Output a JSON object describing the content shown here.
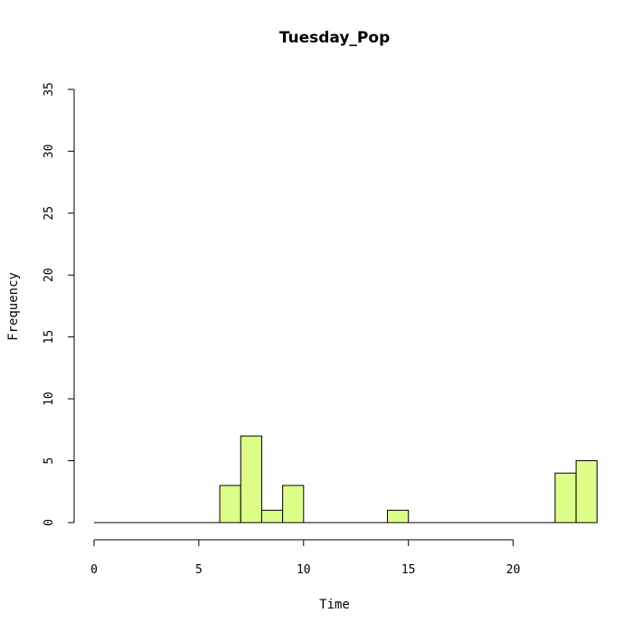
{
  "chart_data": {
    "type": "bar",
    "title": "Tuesday_Pop",
    "xlabel": "Time",
    "ylabel": "Frequency",
    "xlim": [
      0,
      24
    ],
    "ylim": [
      0,
      35
    ],
    "x_ticks": [
      "0",
      "5",
      "10",
      "15",
      "20"
    ],
    "y_ticks": [
      "0",
      "5",
      "10",
      "15",
      "20",
      "25",
      "30",
      "35"
    ],
    "bin_width": 1,
    "bins": [
      {
        "start": 0,
        "end": 1,
        "count": 0
      },
      {
        "start": 1,
        "end": 2,
        "count": 0
      },
      {
        "start": 2,
        "end": 3,
        "count": 0
      },
      {
        "start": 3,
        "end": 4,
        "count": 0
      },
      {
        "start": 4,
        "end": 5,
        "count": 0
      },
      {
        "start": 5,
        "end": 6,
        "count": 0
      },
      {
        "start": 6,
        "end": 7,
        "count": 3
      },
      {
        "start": 7,
        "end": 8,
        "count": 7
      },
      {
        "start": 8,
        "end": 9,
        "count": 1
      },
      {
        "start": 9,
        "end": 10,
        "count": 3
      },
      {
        "start": 10,
        "end": 11,
        "count": 0
      },
      {
        "start": 11,
        "end": 12,
        "count": 0
      },
      {
        "start": 12,
        "end": 13,
        "count": 0
      },
      {
        "start": 13,
        "end": 14,
        "count": 0
      },
      {
        "start": 14,
        "end": 15,
        "count": 1
      },
      {
        "start": 15,
        "end": 16,
        "count": 0
      },
      {
        "start": 16,
        "end": 17,
        "count": 0
      },
      {
        "start": 17,
        "end": 18,
        "count": 0
      },
      {
        "start": 18,
        "end": 19,
        "count": 0
      },
      {
        "start": 19,
        "end": 20,
        "count": 0
      },
      {
        "start": 20,
        "end": 21,
        "count": 0
      },
      {
        "start": 21,
        "end": 22,
        "count": 0
      },
      {
        "start": 22,
        "end": 23,
        "count": 4
      },
      {
        "start": 23,
        "end": 24,
        "count": 5
      }
    ],
    "bar_color": "#DDFF88",
    "grid": false
  }
}
